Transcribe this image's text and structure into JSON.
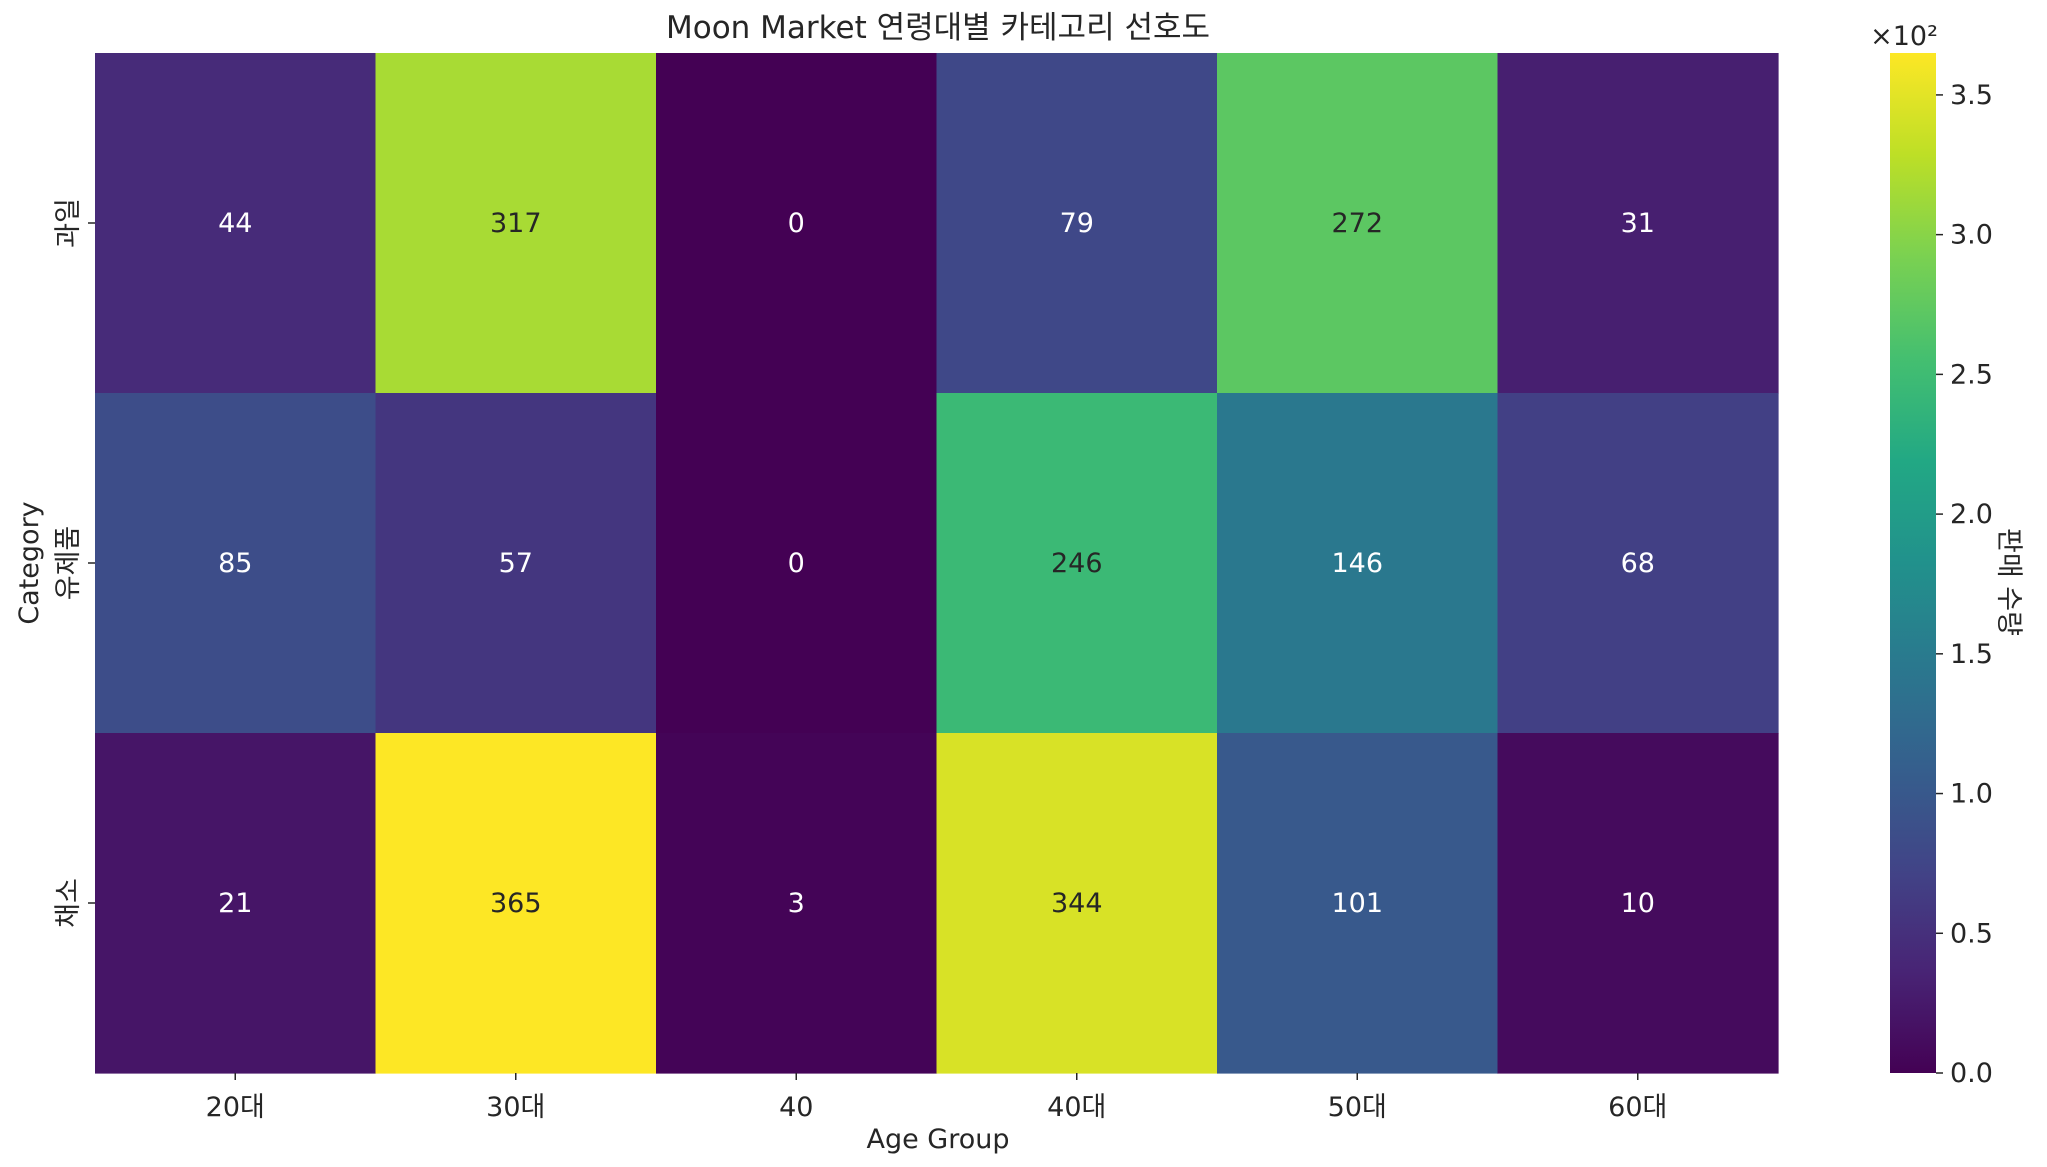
{
  "chart_data": {
    "type": "heatmap",
    "title": "Moon Market 연령대별 카테고리 선호도",
    "xlabel": "Age Group",
    "ylabel": "Category",
    "x_categories": [
      "20대",
      "30대",
      "40",
      "40대",
      "50대",
      "60대"
    ],
    "y_categories": [
      "과일",
      "유제품",
      "채소"
    ],
    "values": [
      [
        44,
        317,
        0,
        79,
        272,
        31
      ],
      [
        85,
        57,
        0,
        246,
        146,
        68
      ],
      [
        21,
        365,
        3,
        344,
        101,
        10
      ]
    ],
    "colormap": "viridis",
    "colorbar": {
      "label": "판매 수량",
      "multiplier": "×10²",
      "ticks": [
        "0.0",
        "0.5",
        "1.0",
        "1.5",
        "2.0",
        "2.5",
        "3.0",
        "3.5"
      ],
      "tick_values": [
        0,
        50,
        100,
        150,
        200,
        250,
        300,
        350
      ],
      "range": [
        0,
        365
      ]
    }
  }
}
